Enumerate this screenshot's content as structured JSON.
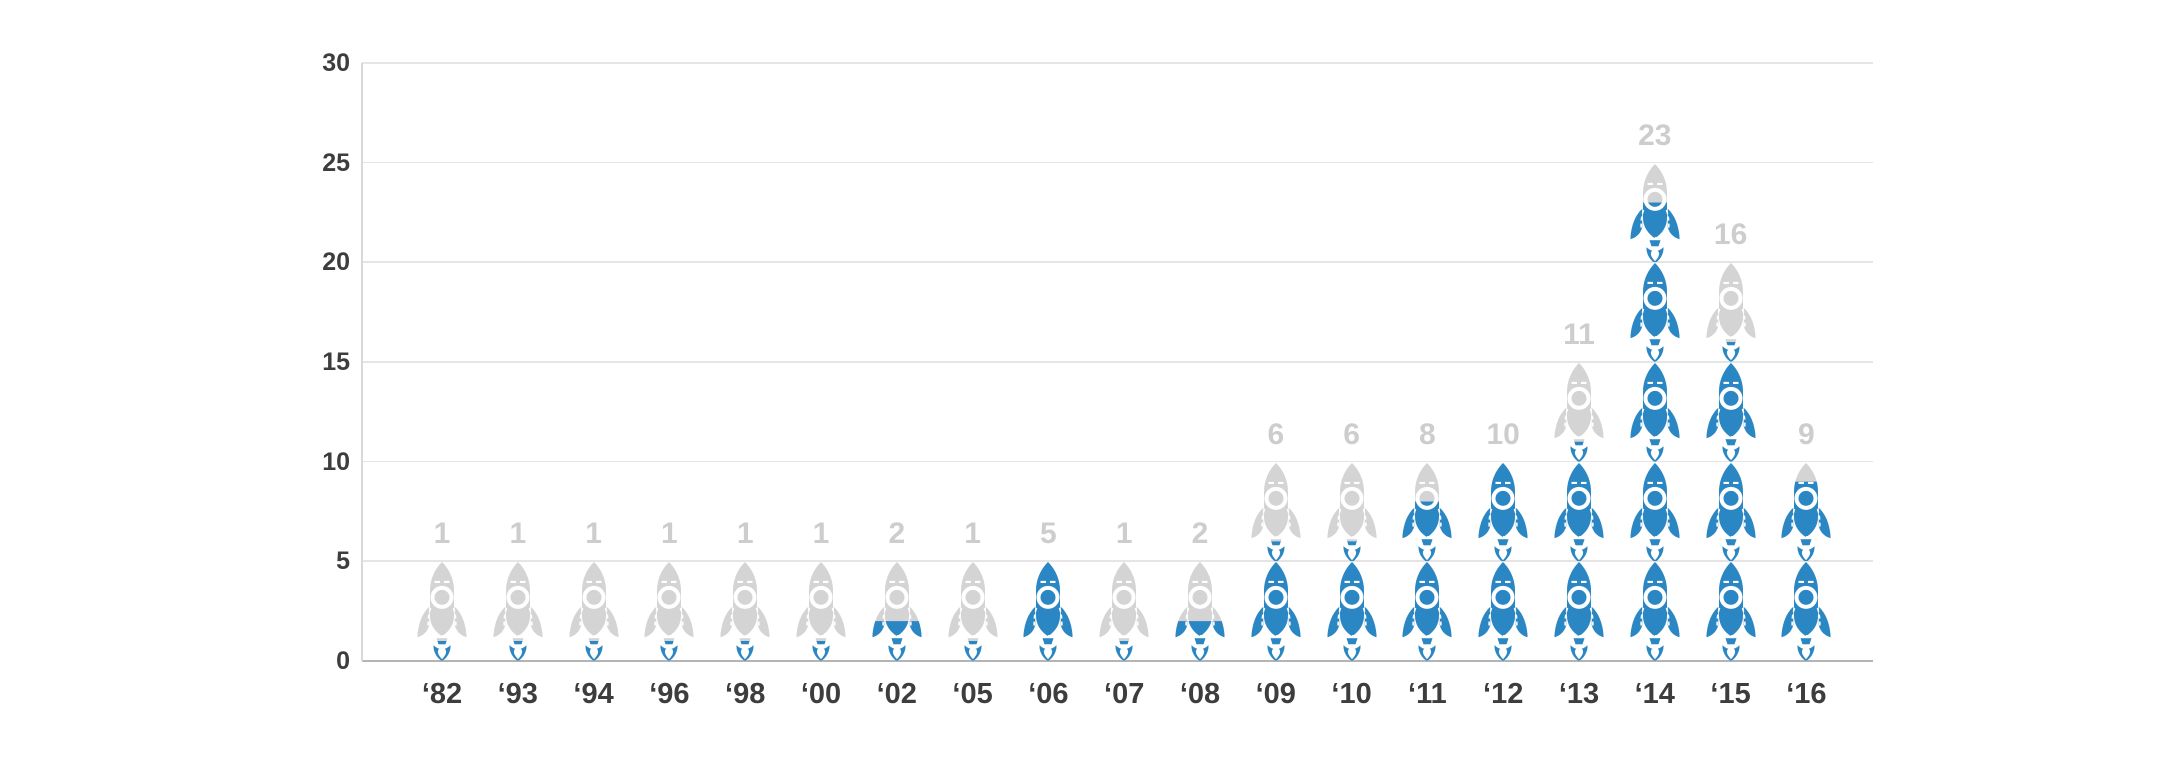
{
  "chart_data": {
    "type": "pictogram_bar",
    "icon": "rocket-icon",
    "units_per_icon": 5,
    "categories": [
      "‘82",
      "‘93",
      "‘94",
      "‘96",
      "‘98",
      "‘00",
      "‘02",
      "‘05",
      "‘06",
      "‘07",
      "‘08",
      "‘09",
      "‘10",
      "‘11",
      "‘12",
      "‘13",
      "‘14",
      "‘15",
      "‘16"
    ],
    "values": [
      1,
      1,
      1,
      1,
      1,
      1,
      2,
      1,
      5,
      1,
      2,
      6,
      6,
      8,
      10,
      11,
      23,
      16,
      9
    ],
    "ylim": [
      0,
      30
    ],
    "yticks": [
      0,
      5,
      10,
      15,
      20,
      25,
      30
    ],
    "grid": true,
    "legend_position": "none",
    "title": "",
    "xlabel": "",
    "ylabel": "",
    "colors": {
      "filled": "#2b87c3",
      "unfilled": "#d4d4d4",
      "value_label": "#cdcdcd",
      "axis_label": "#3d3d3d",
      "gridline": "#e5e5e5",
      "baseline": "#b4b4b4",
      "axis_line": "#d9d9d9",
      "background": "#ffffff"
    }
  }
}
